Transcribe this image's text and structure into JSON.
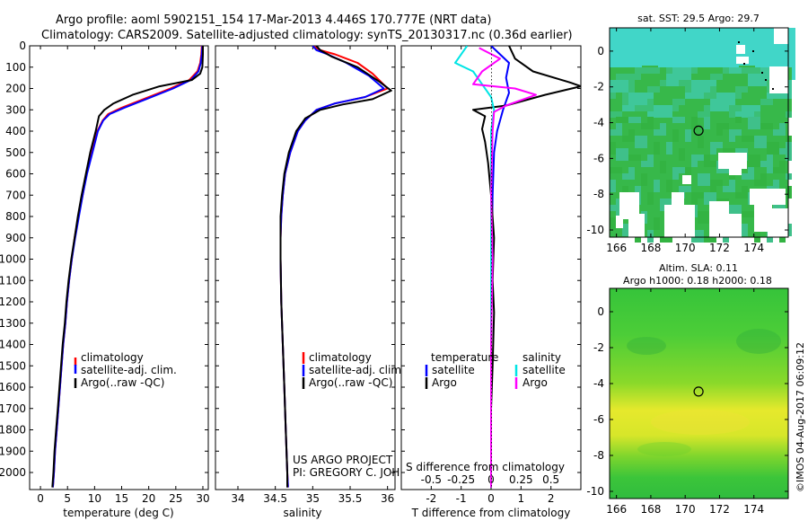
{
  "title_line1": "Argo profile: aoml 5902151_154 17-Mar-2013 4.446S 170.777E (NRT data)",
  "title_line2": "Climatology: CARS2009. Satellite-adjusted climatology: synTS_20130317.nc (0.36d earlier)",
  "timestamp": "©IMOS 04-Aug-2017 06:09:12",
  "project_line1": "US ARGO PROJECT",
  "project_line2": "PI: GREGORY C. JOHNSON",
  "colors": {
    "climatology": "#ff0000",
    "satellite": "#0000ff",
    "argo": "#000000",
    "t_sat": "#0000ff",
    "t_argo": "#000000",
    "s_sat": "#00e5e5",
    "s_argo": "#ff00ff",
    "sst_land": "#ffffff",
    "marker": "#000000"
  },
  "chart_data": [
    {
      "type": "line",
      "name": "temperature-profile",
      "title": "",
      "xlabel": "temperature (deg C)",
      "ylabel": "",
      "xlim": [
        -2,
        31
      ],
      "ylim": [
        2080,
        0
      ],
      "xticks": [
        0,
        5,
        10,
        15,
        20,
        25,
        30
      ],
      "yticks": [
        0,
        100,
        200,
        300,
        400,
        500,
        600,
        700,
        800,
        900,
        1000,
        1100,
        1200,
        1300,
        1400,
        1500,
        1600,
        1700,
        1800,
        1900,
        2000
      ],
      "legend": [
        "climatology",
        "satellite-adj. clim.",
        "Argo(..raw -QC)"
      ],
      "series": [
        {
          "name": "climatology",
          "color": "#ff0000",
          "points": [
            [
              29.8,
              0
            ],
            [
              29.7,
              40
            ],
            [
              29.5,
              80
            ],
            [
              29.0,
              120
            ],
            [
              27.5,
              160
            ],
            [
              24,
              200
            ],
            [
              19,
              250
            ],
            [
              15,
              290
            ],
            [
              12.5,
              320
            ],
            [
              11.5,
              350
            ],
            [
              10.5,
              400
            ],
            [
              9.5,
              500
            ],
            [
              8.5,
              600
            ],
            [
              7.8,
              700
            ],
            [
              7,
              800
            ],
            [
              6.3,
              900
            ],
            [
              5.8,
              1000
            ],
            [
              5.3,
              1100
            ],
            [
              4.9,
              1200
            ],
            [
              4.6,
              1300
            ],
            [
              4.2,
              1400
            ],
            [
              3.9,
              1500
            ],
            [
              3.6,
              1600
            ],
            [
              3.3,
              1700
            ],
            [
              3.0,
              1800
            ],
            [
              2.7,
              1900
            ],
            [
              2.5,
              2000
            ],
            [
              2.3,
              2070
            ]
          ]
        },
        {
          "name": "satellite-adj. clim.",
          "color": "#0000ff",
          "points": [
            [
              29.9,
              0
            ],
            [
              29.8,
              40
            ],
            [
              29.6,
              80
            ],
            [
              29.2,
              120
            ],
            [
              27.8,
              160
            ],
            [
              24.5,
              200
            ],
            [
              19.5,
              250
            ],
            [
              15.5,
              290
            ],
            [
              12.8,
              320
            ],
            [
              11.6,
              350
            ],
            [
              10.6,
              400
            ],
            [
              9.6,
              500
            ],
            [
              8.6,
              600
            ],
            [
              7.8,
              700
            ],
            [
              7.1,
              800
            ],
            [
              6.4,
              900
            ],
            [
              5.8,
              1000
            ],
            [
              5.3,
              1100
            ],
            [
              4.9,
              1200
            ],
            [
              4.6,
              1300
            ],
            [
              4.2,
              1400
            ],
            [
              3.9,
              1500
            ],
            [
              3.6,
              1600
            ],
            [
              3.3,
              1700
            ],
            [
              3.0,
              1800
            ],
            [
              2.7,
              1900
            ],
            [
              2.5,
              2000
            ],
            [
              2.3,
              2070
            ]
          ]
        },
        {
          "name": "Argo(..raw -QC)",
          "color": "#000000",
          "points": [
            [
              30.0,
              0
            ],
            [
              30.0,
              40
            ],
            [
              29.9,
              100
            ],
            [
              29.5,
              130
            ],
            [
              28,
              160
            ],
            [
              22,
              190
            ],
            [
              17,
              230
            ],
            [
              13.5,
              270
            ],
            [
              11.8,
              300
            ],
            [
              10.8,
              330
            ],
            [
              10.2,
              400
            ],
            [
              9.2,
              500
            ],
            [
              8.4,
              600
            ],
            [
              7.6,
              700
            ],
            [
              6.9,
              800
            ],
            [
              6.3,
              900
            ],
            [
              5.7,
              1000
            ],
            [
              5.2,
              1100
            ],
            [
              4.8,
              1200
            ],
            [
              4.5,
              1300
            ],
            [
              4.1,
              1400
            ],
            [
              3.8,
              1500
            ],
            [
              3.5,
              1600
            ],
            [
              3.2,
              1700
            ],
            [
              2.9,
              1800
            ],
            [
              2.6,
              1900
            ],
            [
              2.4,
              2000
            ],
            [
              2.2,
              2070
            ]
          ]
        }
      ]
    },
    {
      "type": "line",
      "name": "salinity-profile",
      "title": "",
      "xlabel": "salinity",
      "ylabel": "",
      "xlim": [
        33.7,
        36.1
      ],
      "ylim": [
        2080,
        0
      ],
      "xticks": [
        34,
        34.5,
        35,
        35.5,
        36
      ],
      "legend": [
        "climatology",
        "satellite-adj. clim.",
        "Argo(..raw -QC)"
      ],
      "series": [
        {
          "name": "climatology",
          "color": "#ff0000",
          "points": [
            [
              35.0,
              0
            ],
            [
              35.1,
              20
            ],
            [
              35.3,
              40
            ],
            [
              35.6,
              80
            ],
            [
              35.8,
              130
            ],
            [
              36.0,
              200
            ],
            [
              35.7,
              240
            ],
            [
              35.3,
              270
            ],
            [
              35.05,
              300
            ],
            [
              34.9,
              350
            ],
            [
              34.8,
              400
            ],
            [
              34.7,
              500
            ],
            [
              34.63,
              600
            ],
            [
              34.6,
              700
            ],
            [
              34.58,
              800
            ],
            [
              34.57,
              900
            ],
            [
              34.57,
              1000
            ],
            [
              34.58,
              1200
            ],
            [
              34.6,
              1400
            ],
            [
              34.62,
              1600
            ],
            [
              34.64,
              1800
            ],
            [
              34.66,
              2000
            ],
            [
              34.67,
              2070
            ]
          ]
        },
        {
          "name": "satellite-adj. clim.",
          "color": "#0000ff",
          "points": [
            [
              35.0,
              0
            ],
            [
              35.05,
              20
            ],
            [
              35.2,
              40
            ],
            [
              35.45,
              80
            ],
            [
              35.75,
              140
            ],
            [
              35.95,
              200
            ],
            [
              35.7,
              240
            ],
            [
              35.3,
              270
            ],
            [
              35.05,
              300
            ],
            [
              34.9,
              350
            ],
            [
              34.8,
              400
            ],
            [
              34.7,
              500
            ],
            [
              34.63,
              600
            ],
            [
              34.6,
              700
            ],
            [
              34.58,
              800
            ],
            [
              34.57,
              900
            ],
            [
              34.57,
              1000
            ],
            [
              34.58,
              1200
            ],
            [
              34.6,
              1400
            ],
            [
              34.62,
              1600
            ],
            [
              34.64,
              1800
            ],
            [
              34.66,
              2000
            ],
            [
              34.67,
              2070
            ]
          ]
        },
        {
          "name": "Argo(..raw -QC)",
          "color": "#000000",
          "points": [
            [
              35.05,
              0
            ],
            [
              35.1,
              20
            ],
            [
              35.25,
              50
            ],
            [
              35.6,
              100
            ],
            [
              35.9,
              170
            ],
            [
              36.05,
              210
            ],
            [
              35.8,
              250
            ],
            [
              35.4,
              275
            ],
            [
              35.1,
              300
            ],
            [
              34.9,
              340
            ],
            [
              34.78,
              400
            ],
            [
              34.68,
              500
            ],
            [
              34.62,
              600
            ],
            [
              34.59,
              700
            ],
            [
              34.57,
              800
            ],
            [
              34.57,
              900
            ],
            [
              34.57,
              1000
            ],
            [
              34.58,
              1200
            ],
            [
              34.6,
              1400
            ],
            [
              34.62,
              1600
            ],
            [
              34.64,
              1800
            ],
            [
              34.66,
              2000
            ],
            [
              34.66,
              2070
            ]
          ]
        }
      ]
    },
    {
      "type": "line",
      "name": "difference-profile",
      "title": "",
      "xlabel": "T difference from climatology",
      "xlabel_top": "S difference from climatology",
      "ylabel": "",
      "xlim": [
        -3,
        3
      ],
      "ylim": [
        2080,
        0
      ],
      "xticks": [
        -2,
        -1,
        0,
        1,
        2
      ],
      "xticks_s": [
        -0.5,
        -0.25,
        0,
        0.25,
        0.5
      ],
      "legend_headers": [
        "temperature",
        "salinity"
      ],
      "legend": [
        "satellite",
        "Argo",
        "satellite",
        "Argo"
      ],
      "series": [
        {
          "name": "temperature satellite",
          "color": "#0000ff",
          "points": [
            [
              0,
              0
            ],
            [
              0.3,
              40
            ],
            [
              0.6,
              80
            ],
            [
              0.5,
              150
            ],
            [
              0.6,
              220
            ],
            [
              0.4,
              300
            ],
            [
              0.3,
              350
            ],
            [
              0.2,
              400
            ],
            [
              0.1,
              500
            ],
            [
              0.05,
              700
            ],
            [
              0.02,
              1000
            ],
            [
              0,
              1400
            ],
            [
              0,
              2000
            ],
            [
              0,
              2070
            ]
          ]
        },
        {
          "name": "temperature Argo",
          "color": "#000000",
          "points": [
            [
              0.6,
              0
            ],
            [
              0.8,
              60
            ],
            [
              1.4,
              120
            ],
            [
              2.6,
              170
            ],
            [
              3.0,
              190
            ],
            [
              1.8,
              230
            ],
            [
              0.5,
              280
            ],
            [
              -0.6,
              300
            ],
            [
              -0.2,
              330
            ],
            [
              -0.3,
              390
            ],
            [
              -0.2,
              450
            ],
            [
              -0.1,
              550
            ],
            [
              0,
              700
            ],
            [
              0.1,
              900
            ],
            [
              0.05,
              1100
            ],
            [
              0.1,
              1250
            ],
            [
              0.05,
              1500
            ],
            [
              0,
              1700
            ],
            [
              0,
              2070
            ]
          ]
        },
        {
          "name": "salinity satellite",
          "color": "#00e5e5",
          "points": [
            [
              -0.8,
              0
            ],
            [
              -1.2,
              80
            ],
            [
              -0.6,
              120
            ],
            [
              -0.3,
              180
            ],
            [
              0,
              240
            ],
            [
              0.1,
              300
            ],
            [
              0,
              400
            ],
            [
              0,
              700
            ],
            [
              0,
              1000
            ],
            [
              0,
              1400
            ],
            [
              0,
              2070
            ]
          ]
        },
        {
          "name": "salinity Argo",
          "color": "#ff00ff",
          "points": [
            [
              -0.4,
              10
            ],
            [
              0.3,
              60
            ],
            [
              -0.3,
              120
            ],
            [
              -0.6,
              180
            ],
            [
              0.8,
              200
            ],
            [
              1.5,
              230
            ],
            [
              0.5,
              280
            ],
            [
              0.1,
              310
            ],
            [
              0.05,
              400
            ],
            [
              0,
              700
            ],
            [
              0.05,
              1000
            ],
            [
              0,
              1400
            ],
            [
              0,
              2070
            ]
          ]
        }
      ]
    },
    {
      "type": "heatmap",
      "name": "sst-map",
      "title": "sat. SST: 29.5 Argo: 29.7",
      "xticks": [
        166,
        168,
        170,
        172,
        174
      ],
      "yticks": [
        0,
        -2,
        -4,
        -6,
        -8,
        -10
      ],
      "xlim": [
        165.6,
        176
      ],
      "ylim": [
        -10.4,
        1.3
      ],
      "marker": {
        "lon": 170.777,
        "lat": -4.446
      }
    },
    {
      "type": "heatmap",
      "name": "sla-map",
      "title": "Altim. SLA: 0.11",
      "subtitle": "Argo h1000: 0.18 h2000: 0.18",
      "xticks": [
        166,
        168,
        170,
        172,
        174
      ],
      "yticks": [
        0,
        -2,
        -4,
        -6,
        -8,
        -10
      ],
      "xlim": [
        165.6,
        176
      ],
      "ylim": [
        -10.4,
        1.3
      ],
      "marker": {
        "lon": 170.777,
        "lat": -4.446
      }
    }
  ]
}
